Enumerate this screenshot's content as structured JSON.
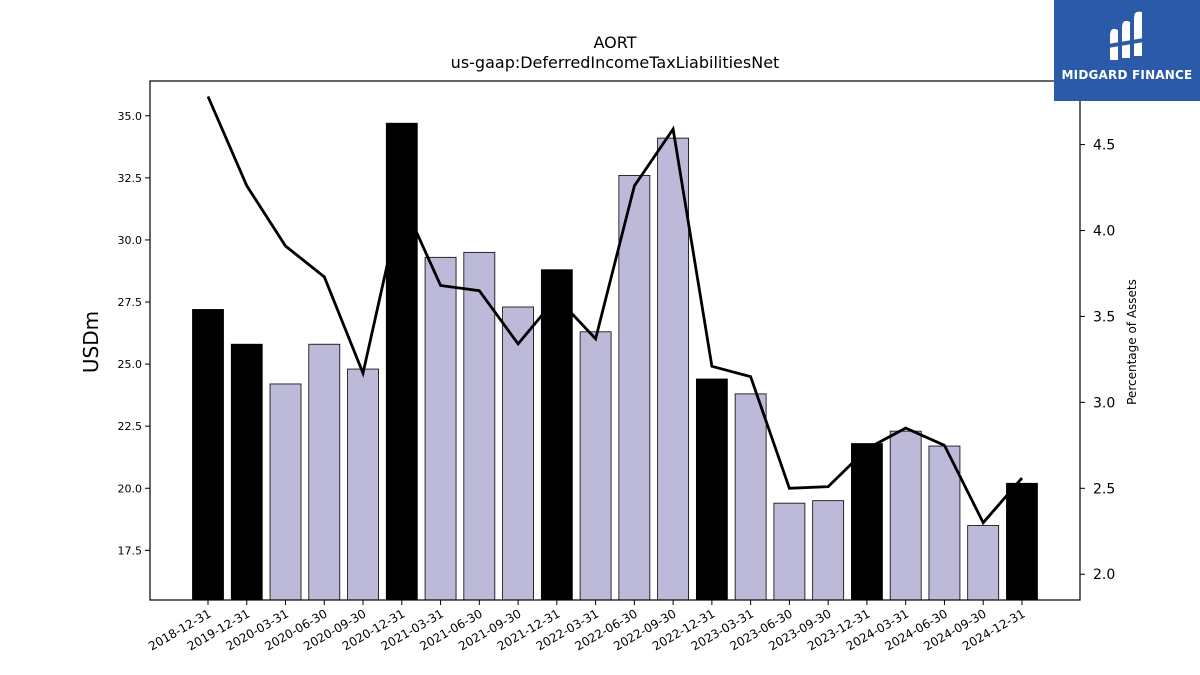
{
  "chart_data": {
    "type": "bar",
    "title": "AORT",
    "subtitle": "us-gaap:DeferredIncomeTaxLiabilitiesNet",
    "ylabel": "USDm",
    "ylabel_right": "Percentage of Assets",
    "ylim": [
      15.5,
      36.4
    ],
    "ylim_right": [
      1.85,
      4.87
    ],
    "yticks": [
      "17.5",
      "20.0",
      "22.5",
      "25.0",
      "27.5",
      "30.0",
      "32.5",
      "35.0"
    ],
    "yticks_right": [
      "2.0",
      "2.5",
      "3.0",
      "3.5",
      "4.0",
      "4.5"
    ],
    "categories": [
      "2018-12-31",
      "2019-12-31",
      "2020-03-31",
      "2020-06-30",
      "2020-09-30",
      "2020-12-31",
      "2021-03-31",
      "2021-06-30",
      "2021-09-30",
      "2021-12-31",
      "2022-03-31",
      "2022-06-30",
      "2022-09-30",
      "2022-12-31",
      "2023-03-31",
      "2023-06-30",
      "2023-09-30",
      "2023-12-31",
      "2024-03-31",
      "2024-06-30",
      "2024-09-30",
      "2024-12-31"
    ],
    "values": [
      27.2,
      25.8,
      24.2,
      25.8,
      24.8,
      34.7,
      29.3,
      29.5,
      27.3,
      28.8,
      26.3,
      32.6,
      34.1,
      24.4,
      23.8,
      19.4,
      19.5,
      21.8,
      22.3,
      21.7,
      18.5,
      20.2
    ],
    "annual": [
      true,
      true,
      false,
      false,
      false,
      true,
      false,
      false,
      false,
      true,
      false,
      false,
      false,
      true,
      false,
      false,
      false,
      true,
      false,
      false,
      false,
      true
    ],
    "series": [
      {
        "type": "bar",
        "values": [
          27.2,
          25.8,
          24.2,
          25.8,
          24.8,
          34.7,
          29.3,
          29.5,
          27.3,
          28.8,
          26.3,
          32.6,
          34.1,
          24.4,
          23.8,
          19.4,
          19.5,
          21.8,
          22.3,
          21.7,
          18.5,
          20.2
        ]
      },
      {
        "type": "line",
        "axis": "right",
        "values": [
          4.78,
          4.26,
          3.91,
          3.73,
          3.17,
          4.18,
          3.68,
          3.65,
          3.34,
          3.61,
          3.37,
          4.26,
          4.59,
          3.21,
          3.15,
          2.5,
          2.51,
          2.73,
          2.85,
          2.75,
          2.3,
          2.56
        ]
      }
    ],
    "colors": {
      "annual_bar": "#000000",
      "quarter_bar": "#bdbad9",
      "line": "#000000"
    },
    "grid": false
  },
  "logo": {
    "text": "MIDGARD FINANCE"
  }
}
